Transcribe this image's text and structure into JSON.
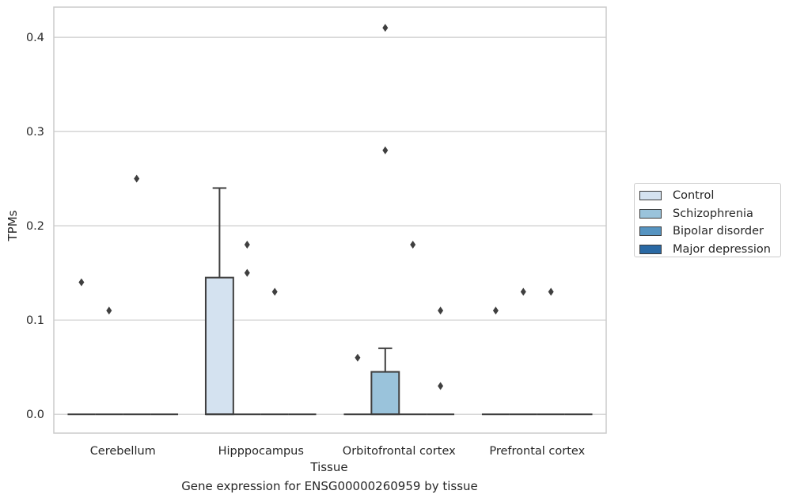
{
  "chart_data": {
    "type": "box",
    "title": "",
    "caption": "Gene expression for ENSG00000260959 by tissue",
    "xlabel": "Tissue",
    "ylabel": "TPMs",
    "ylim": [
      -0.02,
      0.432
    ],
    "yticks": [
      "0.0",
      "0.1",
      "0.2",
      "0.3",
      "0.4"
    ],
    "ytick_values": [
      0.0,
      0.1,
      0.2,
      0.3,
      0.4
    ],
    "grid": true,
    "legend_position": "right",
    "categories": [
      "Cerebellum",
      "Hipppocampus",
      "Orbitofrontal cortex",
      "Prefrontal cortex"
    ],
    "series": [
      {
        "name": "Control",
        "color": "#d4e2f0"
      },
      {
        "name": "Schizophrenia",
        "color": "#9ac3db"
      },
      {
        "name": "Bipolar disorder",
        "color": "#5694c1"
      },
      {
        "name": "Major depression",
        "color": "#2a69a4"
      }
    ],
    "boxes": [
      {
        "category": 0,
        "series": 0,
        "q1": 0,
        "median": 0,
        "q3": 0,
        "whisker_low": 0,
        "whisker_high": 0,
        "outliers": [
          0.14
        ]
      },
      {
        "category": 0,
        "series": 1,
        "q1": 0,
        "median": 0,
        "q3": 0,
        "whisker_low": 0,
        "whisker_high": 0,
        "outliers": [
          0.11
        ]
      },
      {
        "category": 0,
        "series": 2,
        "q1": 0,
        "median": 0,
        "q3": 0,
        "whisker_low": 0,
        "whisker_high": 0,
        "outliers": [
          0.25
        ]
      },
      {
        "category": 0,
        "series": 3,
        "q1": 0,
        "median": 0,
        "q3": 0,
        "whisker_low": 0,
        "whisker_high": 0,
        "outliers": []
      },
      {
        "category": 1,
        "series": 0,
        "q1": 0,
        "median": 0,
        "q3": 0.145,
        "whisker_low": 0,
        "whisker_high": 0.24,
        "outliers": []
      },
      {
        "category": 1,
        "series": 1,
        "q1": 0,
        "median": 0,
        "q3": 0,
        "whisker_low": 0,
        "whisker_high": 0,
        "outliers": [
          0.18,
          0.15
        ]
      },
      {
        "category": 1,
        "series": 2,
        "q1": 0,
        "median": 0,
        "q3": 0,
        "whisker_low": 0,
        "whisker_high": 0,
        "outliers": [
          0.13
        ]
      },
      {
        "category": 1,
        "series": 3,
        "q1": 0,
        "median": 0,
        "q3": 0,
        "whisker_low": 0,
        "whisker_high": 0,
        "outliers": []
      },
      {
        "category": 2,
        "series": 0,
        "q1": 0,
        "median": 0,
        "q3": 0,
        "whisker_low": 0,
        "whisker_high": 0,
        "outliers": [
          0.06
        ]
      },
      {
        "category": 2,
        "series": 1,
        "q1": 0,
        "median": 0,
        "q3": 0.045,
        "whisker_low": 0,
        "whisker_high": 0.07,
        "outliers": [
          0.41,
          0.28
        ]
      },
      {
        "category": 2,
        "series": 2,
        "q1": 0,
        "median": 0,
        "q3": 0,
        "whisker_low": 0,
        "whisker_high": 0,
        "outliers": [
          0.18
        ]
      },
      {
        "category": 2,
        "series": 3,
        "q1": 0,
        "median": 0,
        "q3": 0,
        "whisker_low": 0,
        "whisker_high": 0,
        "outliers": [
          0.11,
          0.03
        ]
      },
      {
        "category": 3,
        "series": 0,
        "q1": 0,
        "median": 0,
        "q3": 0,
        "whisker_low": 0,
        "whisker_high": 0,
        "outliers": [
          0.11
        ]
      },
      {
        "category": 3,
        "series": 1,
        "q1": 0,
        "median": 0,
        "q3": 0,
        "whisker_low": 0,
        "whisker_high": 0,
        "outliers": [
          0.13
        ]
      },
      {
        "category": 3,
        "series": 2,
        "q1": 0,
        "median": 0,
        "q3": 0,
        "whisker_low": 0,
        "whisker_high": 0,
        "outliers": [
          0.13
        ]
      },
      {
        "category": 3,
        "series": 3,
        "q1": 0,
        "median": 0,
        "q3": 0,
        "whisker_low": 0,
        "whisker_high": 0,
        "outliers": []
      }
    ]
  }
}
